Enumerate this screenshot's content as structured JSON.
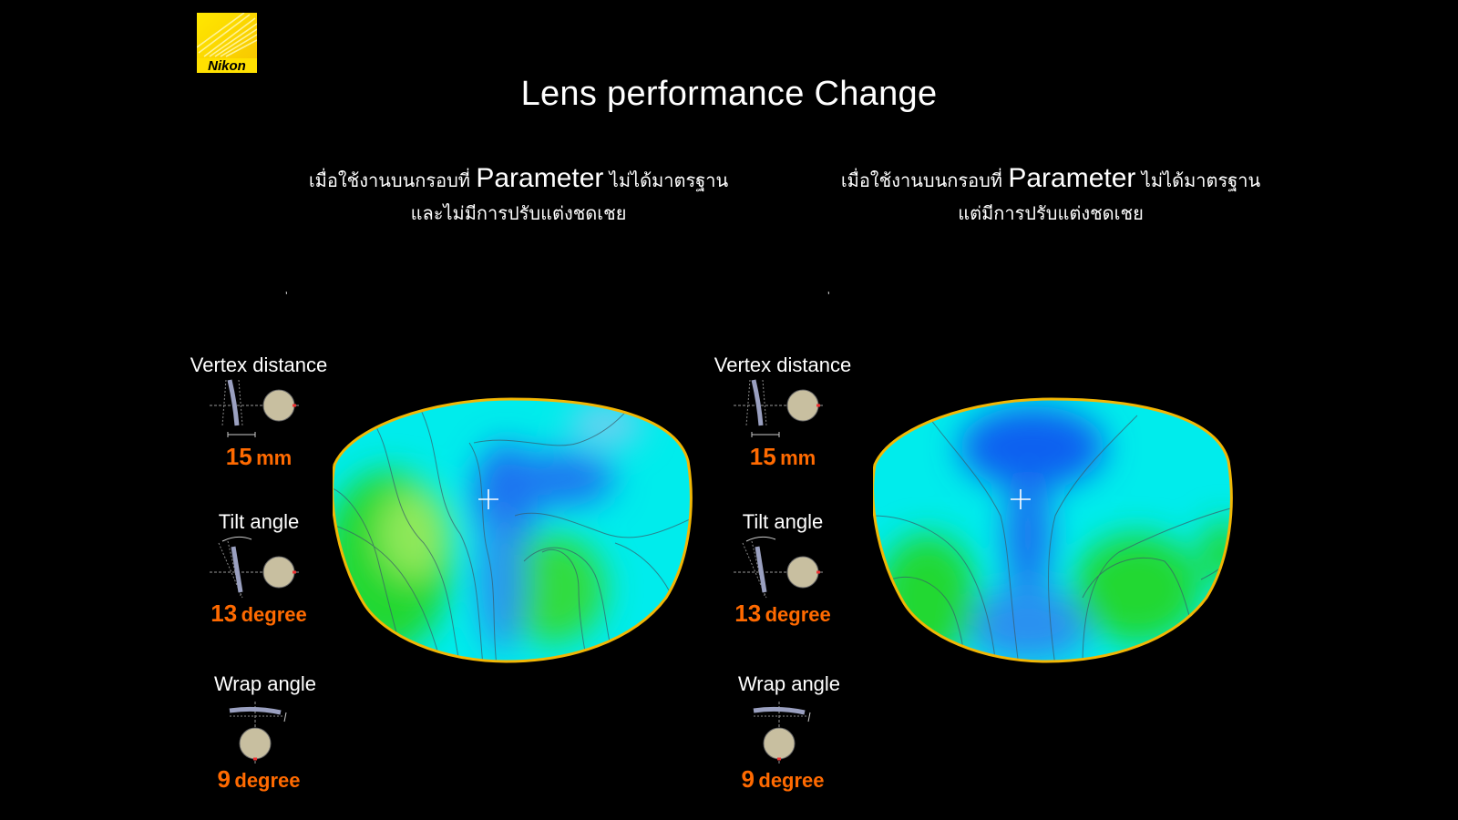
{
  "brand": {
    "logo_text": "Nikon"
  },
  "title": "Lens performance Change",
  "captions": {
    "left": {
      "line1_prefix": "เมื่อใช้งานบนกรอบที่",
      "line1_param": "Parameter",
      "line1_suffix": "ไม่ได้มาตรฐาน",
      "line2": "และไม่มีการปรับแต่งชดเชย"
    },
    "right": {
      "line1_prefix": "เมื่อใช้งานบนกรอบที่",
      "line1_param": "Parameter",
      "line1_suffix": "ไม่ได้มาตรฐาน",
      "line2": "แต่มีการปรับแต่งชดเชย"
    }
  },
  "panels": {
    "left": {
      "tick": "ʼ",
      "vertex": {
        "label": "Vertex distance",
        "value": "15",
        "unit": "mm"
      },
      "tilt": {
        "label": "Tilt angle",
        "value": "13",
        "unit": "degree"
      },
      "wrap": {
        "label": "Wrap angle",
        "value": "9",
        "unit": "degree"
      }
    },
    "right": {
      "tick": "ʼ",
      "vertex": {
        "label": "Vertex distance",
        "value": "15",
        "unit": "mm"
      },
      "tilt": {
        "label": "Tilt angle",
        "value": "13",
        "unit": "degree"
      },
      "wrap": {
        "label": "Wrap angle",
        "value": "9",
        "unit": "degree"
      }
    }
  },
  "colors": {
    "value_orange": "#ff6a00",
    "lens_border": "#f2b705",
    "map_cyan": "#00f0f0",
    "map_blue": "#1a6ff0",
    "map_green": "#22dd33"
  }
}
